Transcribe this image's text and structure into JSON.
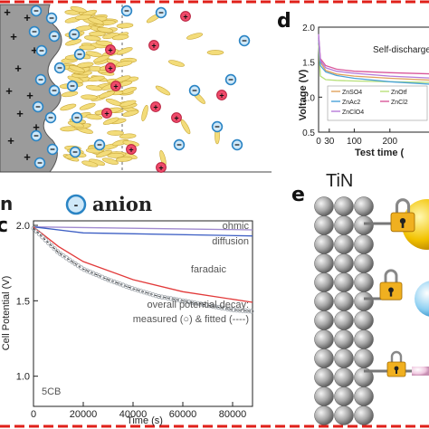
{
  "legend_top": {
    "suffix": "n",
    "anion_label": "anion",
    "anion_symbol": "-"
  },
  "panel_d": {
    "letter": "d",
    "annotation": "Self-discharge",
    "xlabel": "Test time (",
    "ylabel": "Voltage (V)",
    "x_ticks": [
      "0",
      "100",
      "200",
      "30"
    ],
    "y_ticks": [
      "2.0",
      "1.5",
      "1.0",
      "0.5"
    ],
    "legend": [
      {
        "label": "ZnSO4",
        "color": "#e0a15c"
      },
      {
        "label": "ZnOtf",
        "color": "#b8e07a"
      },
      {
        "label": "ZnAc2",
        "color": "#4aa3d9"
      },
      {
        "label": "ZnCl2",
        "color": "#d9579a"
      },
      {
        "label": "ZnClO4",
        "color": "#b57ad9"
      }
    ]
  },
  "panel_c": {
    "letter": "c",
    "ylabel": "Cell Potential (V)",
    "xlabel": "Time (s)",
    "sample": "5CB",
    "annotation_line1": "overall potential decay:",
    "annotation_line2": "measured (○) & fitted (----)",
    "curve_labels": [
      "ohmic",
      "diffusion",
      "faradaic"
    ],
    "x_ticks": [
      "0",
      "20000",
      "40000",
      "60000",
      "80000"
    ],
    "y_ticks": [
      "2.0",
      "1.5",
      "1.0"
    ]
  },
  "panel_e": {
    "letter": "e",
    "title": "TiN"
  },
  "chart_data": [
    {
      "type": "line",
      "xlabel": "Test time (",
      "ylabel": "Voltage (V)",
      "xlim": [
        0,
        330
      ],
      "ylim": [
        0.5,
        2.0
      ],
      "legend_position": "bottom-left",
      "series": [
        {
          "name": "ZnSO4",
          "x": [
            0,
            5,
            20,
            50,
            100,
            200,
            330
          ],
          "y": [
            1.82,
            1.5,
            1.38,
            1.33,
            1.3,
            1.27,
            1.24
          ]
        },
        {
          "name": "ZnOtf",
          "x": [
            0,
            5,
            20,
            50,
            100,
            200,
            330
          ],
          "y": [
            1.75,
            1.3,
            1.25,
            1.24,
            1.23,
            1.22,
            1.21
          ]
        },
        {
          "name": "ZnAc2",
          "x": [
            0,
            5,
            20,
            50,
            100,
            200,
            330
          ],
          "y": [
            1.85,
            1.45,
            1.36,
            1.31,
            1.27,
            1.22,
            1.18
          ]
        },
        {
          "name": "ZnCl2",
          "x": [
            0,
            5,
            20,
            50,
            100,
            200,
            330
          ],
          "y": [
            1.88,
            1.55,
            1.45,
            1.4,
            1.37,
            1.35,
            1.33
          ]
        },
        {
          "name": "ZnClO4",
          "x": [
            0,
            5,
            20,
            50,
            100,
            200,
            330
          ],
          "y": [
            1.9,
            1.52,
            1.42,
            1.37,
            1.34,
            1.3,
            1.27
          ]
        }
      ]
    },
    {
      "type": "line",
      "xlabel": "Time (s)",
      "ylabel": "Cell Potential (V)",
      "xlim": [
        0,
        88000
      ],
      "ylim": [
        0.8,
        2.03
      ],
      "series": [
        {
          "name": "ohmic",
          "x": [
            0,
            88000
          ],
          "y": [
            1.99,
            1.97
          ]
        },
        {
          "name": "diffusion",
          "x": [
            0,
            20000,
            88000
          ],
          "y": [
            1.99,
            1.95,
            1.93
          ]
        },
        {
          "name": "faradaic",
          "x": [
            0,
            10000,
            20000,
            40000,
            60000,
            88000
          ],
          "y": [
            1.99,
            1.86,
            1.76,
            1.64,
            1.56,
            1.49
          ]
        },
        {
          "name": "measured",
          "x": [
            0,
            5000,
            10000,
            20000,
            30000,
            40000,
            50000,
            60000,
            70000,
            80000,
            88000
          ],
          "y": [
            1.98,
            1.9,
            1.82,
            1.71,
            1.64,
            1.58,
            1.53,
            1.5,
            1.47,
            1.44,
            1.43
          ]
        }
      ]
    }
  ]
}
